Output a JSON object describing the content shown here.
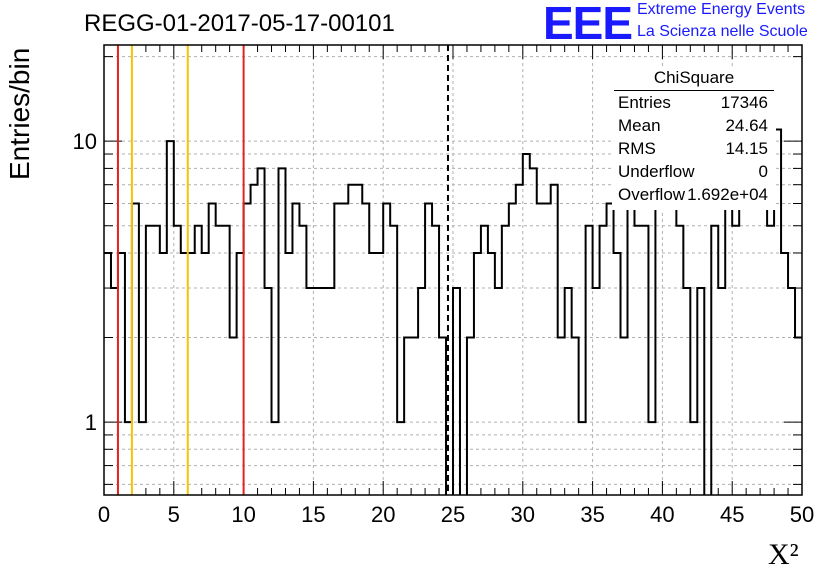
{
  "title": "REGG-01-2017-05-17-00101",
  "brand": {
    "logo": "EEE",
    "line1": "Extreme Energy Events",
    "line2": "La Scienza nelle Scuole"
  },
  "stats": {
    "name": "ChiSquare",
    "rows": [
      {
        "label": "Entries",
        "value": "17346"
      },
      {
        "label": "Mean",
        "value": "24.64"
      },
      {
        "label": "RMS",
        "value": "14.15"
      },
      {
        "label": "Underflow",
        "value": "0"
      },
      {
        "label": "Overflow",
        "value": "1.692e+04"
      }
    ]
  },
  "colors": {
    "red": "#e8211b",
    "yellow": "#f5c400",
    "line": "#000000",
    "grid": "#b0b0b0"
  },
  "chart_data": {
    "type": "histogram",
    "title": "REGG-01-2017-05-17-00101",
    "xlabel": "X²",
    "ylabel": "Entries/bin",
    "x_range": [
      0,
      50
    ],
    "y_range": [
      0.55,
      22
    ],
    "y_scale": "log",
    "grid": true,
    "x_ticks": [
      "0",
      "5",
      "10",
      "15",
      "20",
      "25",
      "30",
      "35",
      "40",
      "45",
      "50"
    ],
    "y_ticks": [
      "1",
      "10"
    ],
    "bin_width": 0.5,
    "bin_values": [
      4,
      3,
      4,
      1,
      6,
      1,
      5,
      5,
      4,
      10,
      5,
      4,
      4,
      5,
      4,
      6,
      5,
      5,
      2,
      4,
      6,
      7,
      8,
      3,
      1,
      8,
      4,
      6,
      5,
      3,
      3,
      3,
      3,
      6,
      6,
      7,
      7,
      6,
      4,
      4,
      6,
      5,
      1,
      2,
      2,
      3,
      6,
      5,
      2,
      0,
      3,
      0,
      2,
      4,
      5,
      4,
      3,
      5,
      6,
      7,
      9,
      8,
      6,
      6,
      7,
      2,
      3,
      2,
      1,
      5,
      3,
      5,
      6,
      4,
      2,
      6,
      5,
      5,
      1,
      7,
      7,
      6,
      5,
      3,
      1,
      3,
      0,
      5,
      3,
      6,
      5,
      7,
      9,
      9,
      8,
      5,
      11,
      4,
      3,
      2
    ],
    "reference_lines": [
      {
        "x": 1,
        "color": "red"
      },
      {
        "x": 2,
        "color": "yellow"
      },
      {
        "x": 6,
        "color": "yellow"
      },
      {
        "x": 10,
        "color": "red"
      },
      {
        "x": 24.64,
        "color": "black",
        "style": "dashed"
      }
    ]
  }
}
